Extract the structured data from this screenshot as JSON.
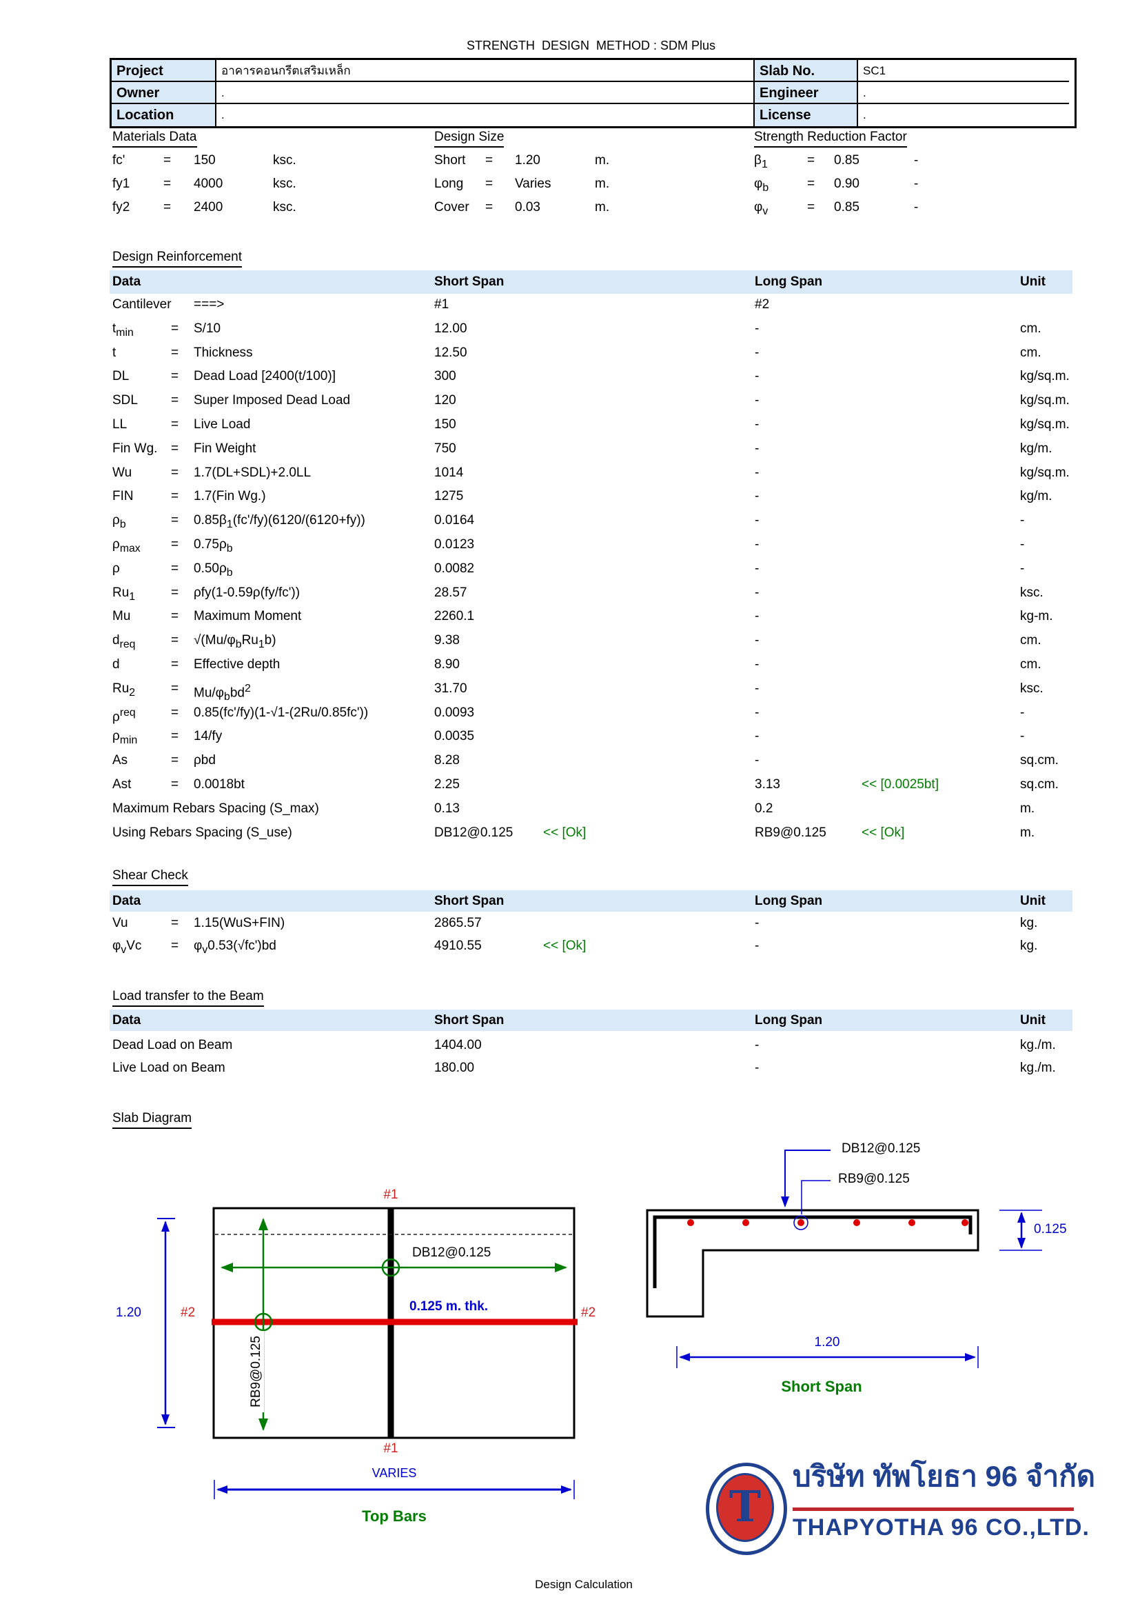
{
  "page": {
    "title": "STRENGTH  DESIGN  METHOD : SDM Plus",
    "footer": "Design Calculation"
  },
  "header_table": {
    "rows": [
      {
        "label": "Project",
        "value": "อาคารคอนกรีตเสริมเหล็ก",
        "label2": "Slab No.",
        "value2": "SC1"
      },
      {
        "label": "Owner",
        "value": ".",
        "label2": "Engineer",
        "value2": "."
      },
      {
        "label": "Location",
        "value": ".",
        "label2": "License",
        "value2": "."
      }
    ]
  },
  "info_blocks": [
    {
      "id": "materials",
      "heading": "Materials Data",
      "rows": [
        {
          "sym": "fc'",
          "eq": "=",
          "val": "150",
          "unit": "ksc."
        },
        {
          "sym": "fy1",
          "eq": "=",
          "val": "4000",
          "unit": "ksc."
        },
        {
          "sym": "fy2",
          "eq": "=",
          "val": "2400",
          "unit": "ksc."
        }
      ]
    },
    {
      "id": "design-size",
      "heading": "Design Size",
      "rows": [
        {
          "sym": "Short",
          "eq": "=",
          "val": "1.20",
          "unit": "m."
        },
        {
          "sym": "Long",
          "eq": "=",
          "val": "Varies",
          "unit": "m."
        },
        {
          "sym": "Cover",
          "eq": "=",
          "val": "0.03",
          "unit": "m."
        }
      ]
    },
    {
      "id": "reduction",
      "heading": "Strength Reduction Factor",
      "rows": [
        {
          "sym": "β<sub>1</sub>",
          "eq": "=",
          "val": "0.85",
          "unit": "-"
        },
        {
          "sym": "φ<sub>b</sub>",
          "eq": "=",
          "val": "0.90",
          "unit": "-"
        },
        {
          "sym": "φ<sub>v</sub>",
          "eq": "=",
          "val": "0.85",
          "unit": "-"
        }
      ]
    }
  ],
  "tables": [
    {
      "id": "design-reinforcement",
      "heading": "Design Reinforcement",
      "columns": {
        "data": "Data",
        "short": "Short Span",
        "long": "Long Span",
        "unit": "Unit"
      },
      "rows": [
        {
          "sym": "Cantilever",
          "eq": "",
          "formula": "===>",
          "short": "#1",
          "snote": "",
          "long": "#2",
          "lnote": "",
          "unit": ""
        },
        {
          "sym": "t<sub>min</sub>",
          "eq": "=",
          "formula": "S/10",
          "short": "12.00",
          "snote": "",
          "long": "-",
          "lnote": "",
          "unit": "cm."
        },
        {
          "sym": "t",
          "eq": "=",
          "formula": "Thickness",
          "short": "12.50",
          "snote": "",
          "long": "-",
          "lnote": "",
          "unit": "cm."
        },
        {
          "sym": "DL",
          "eq": "=",
          "formula": "Dead Load [2400(t/100)]",
          "short": "300",
          "snote": "",
          "long": "-",
          "lnote": "",
          "unit": "kg/sq.m."
        },
        {
          "sym": "SDL",
          "eq": "=",
          "formula": "Super Imposed Dead Load",
          "short": "120",
          "snote": "",
          "long": "-",
          "lnote": "",
          "unit": "kg/sq.m."
        },
        {
          "sym": "LL",
          "eq": "=",
          "formula": "Live Load",
          "short": "150",
          "snote": "",
          "long": "-",
          "lnote": "",
          "unit": "kg/sq.m."
        },
        {
          "sym": "Fin Wg.",
          "eq": "=",
          "formula": "Fin Weight",
          "short": "750",
          "snote": "",
          "long": "-",
          "lnote": "",
          "unit": "kg/m."
        },
        {
          "sym": "Wu",
          "eq": "=",
          "formula": "1.7(DL+SDL)+2.0LL",
          "short": "1014",
          "snote": "",
          "long": "-",
          "lnote": "",
          "unit": "kg/sq.m."
        },
        {
          "sym": "FIN",
          "eq": "=",
          "formula": "1.7(Fin Wg.)",
          "short": "1275",
          "snote": "",
          "long": "-",
          "lnote": "",
          "unit": "kg/m."
        },
        {
          "sym": "ρ<sub>b</sub>",
          "eq": "=",
          "formula": "0.85β<sub>1</sub>(fc'/fy)(6120/(6120+fy))",
          "short": "0.0164",
          "snote": "",
          "long": "-",
          "lnote": "",
          "unit": "-"
        },
        {
          "sym": "ρ<sub>max</sub>",
          "eq": "=",
          "formula": "0.75ρ<sub>b</sub>",
          "short": "0.0123",
          "snote": "",
          "long": "-",
          "lnote": "",
          "unit": "-"
        },
        {
          "sym": "ρ",
          "eq": "=",
          "formula": "0.50ρ<sub>b</sub>",
          "short": "0.0082",
          "snote": "",
          "long": "-",
          "lnote": "",
          "unit": "-"
        },
        {
          "sym": "Ru<sub>1</sub>",
          "eq": "=",
          "formula": "ρfy(1-0.59ρ(fy/fc'))",
          "short": "28.57",
          "snote": "",
          "long": "-",
          "lnote": "",
          "unit": "ksc."
        },
        {
          "sym": "Mu",
          "eq": "=",
          "formula": "Maximum Moment",
          "short": "2260.1",
          "snote": "",
          "long": "-",
          "lnote": "",
          "unit": "kg-m."
        },
        {
          "sym": "d<sub>req</sub>",
          "eq": "=",
          "formula": "√(Mu/φ<sub>b</sub>Ru<sub>1</sub>b)",
          "short": "9.38",
          "snote": "",
          "long": "-",
          "lnote": "",
          "unit": "cm."
        },
        {
          "sym": "d",
          "eq": "=",
          "formula": "Effective depth",
          "short": "8.90",
          "snote": "",
          "long": "-",
          "lnote": "",
          "unit": "cm."
        },
        {
          "sym": "Ru<sub>2</sub>",
          "eq": "=",
          "formula": "Mu/φ<sub>b</sub>bd<sup>2</sup>",
          "short": "31.70",
          "snote": "",
          "long": "-",
          "lnote": "",
          "unit": "ksc."
        },
        {
          "sym": "ρ<sup>req</sup>",
          "eq": "=",
          "formula": "0.85(fc'/fy)(1-√1-(2Ru/0.85fc'))",
          "short": "0.0093",
          "snote": "",
          "long": "-",
          "lnote": "",
          "unit": "-"
        },
        {
          "sym": "ρ<sub>min</sub>",
          "eq": "=",
          "formula": "14/fy",
          "short": "0.0035",
          "snote": "",
          "long": "-",
          "lnote": "",
          "unit": "-"
        },
        {
          "sym": "As",
          "eq": "=",
          "formula": "ρbd",
          "short": "8.28",
          "snote": "",
          "long": "-",
          "lnote": "",
          "unit": "sq.cm."
        },
        {
          "sym": "Ast",
          "eq": "=",
          "formula": "0.0018bt",
          "short": "2.25",
          "snote": "",
          "long": "3.13",
          "lnote": "<< [0.0025bt]",
          "unit": "sq.cm."
        },
        {
          "sym": "Maximum Rebars Spacing (S_max)",
          "eq": "",
          "formula": "",
          "short": "0.13",
          "snote": "",
          "long": "0.2",
          "lnote": "",
          "unit": "m."
        },
        {
          "sym": "Using Rebars Spacing (S_use)",
          "eq": "",
          "formula": "",
          "short": "DB12@0.125",
          "snote": "<< [Ok]",
          "long": "RB9@0.125",
          "lnote": "<< [Ok]",
          "unit": "m."
        }
      ]
    },
    {
      "id": "shear-check",
      "heading": "Shear Check",
      "columns": {
        "data": "Data",
        "short": "Short Span",
        "long": "Long Span",
        "unit": "Unit"
      },
      "rows": [
        {
          "sym": "Vu",
          "eq": "=",
          "formula": "1.15(WuS+FIN)",
          "short": "2865.57",
          "snote": "",
          "long": "-",
          "lnote": "",
          "unit": "kg."
        },
        {
          "sym": "φ<sub>v</sub>Vc",
          "eq": "=",
          "formula": "φ<sub>v</sub>0.53(√fc')bd",
          "short": "4910.55",
          "snote": "<< [Ok]",
          "long": "-",
          "lnote": "",
          "unit": "kg."
        }
      ]
    },
    {
      "id": "load-transfer",
      "heading": "Load transfer to the Beam",
      "columns": {
        "data": "Data",
        "short": "Short Span",
        "long": "Long Span",
        "unit": "Unit"
      },
      "rows": [
        {
          "sym": "Dead Load on Beam",
          "eq": "",
          "formula": "",
          "short": "1404.00",
          "snote": "",
          "long": "-",
          "lnote": "",
          "unit": "kg./m."
        },
        {
          "sym": "Live Load on Beam",
          "eq": "",
          "formula": "",
          "short": "180.00",
          "snote": "",
          "long": "-",
          "lnote": "",
          "unit": "kg./m."
        }
      ]
    }
  ],
  "diagram": {
    "heading": "Slab Diagram",
    "plan": {
      "label_top": "#1",
      "label_bottom": "#1",
      "label_left": "#2",
      "label_right": "#2",
      "dim_height": "1.20",
      "bar_h": "DB12@0.125",
      "bar_v": "RB9@0.125",
      "thickness": "0.125 m. thk.",
      "dim_width": "VARIES",
      "caption": "Top Bars"
    },
    "section": {
      "leader1": "DB12@0.125",
      "leader2": "RB9@0.125",
      "dim_thk": "0.125",
      "dim_span": "1.20",
      "caption": "Short Span"
    }
  },
  "logo": {
    "monogram": "T",
    "thai": "บริษัท ทัพโยธา 96 จำกัด",
    "english": "THAPYOTHA 96 CO.,LTD."
  },
  "colors": {
    "band_blue": "#d9e9f7",
    "ok_green": "#007d00",
    "line_red": "#e00000",
    "dim_blue": "#0000d0",
    "logo_blue": "#20418f",
    "logo_red": "#d3302c"
  }
}
